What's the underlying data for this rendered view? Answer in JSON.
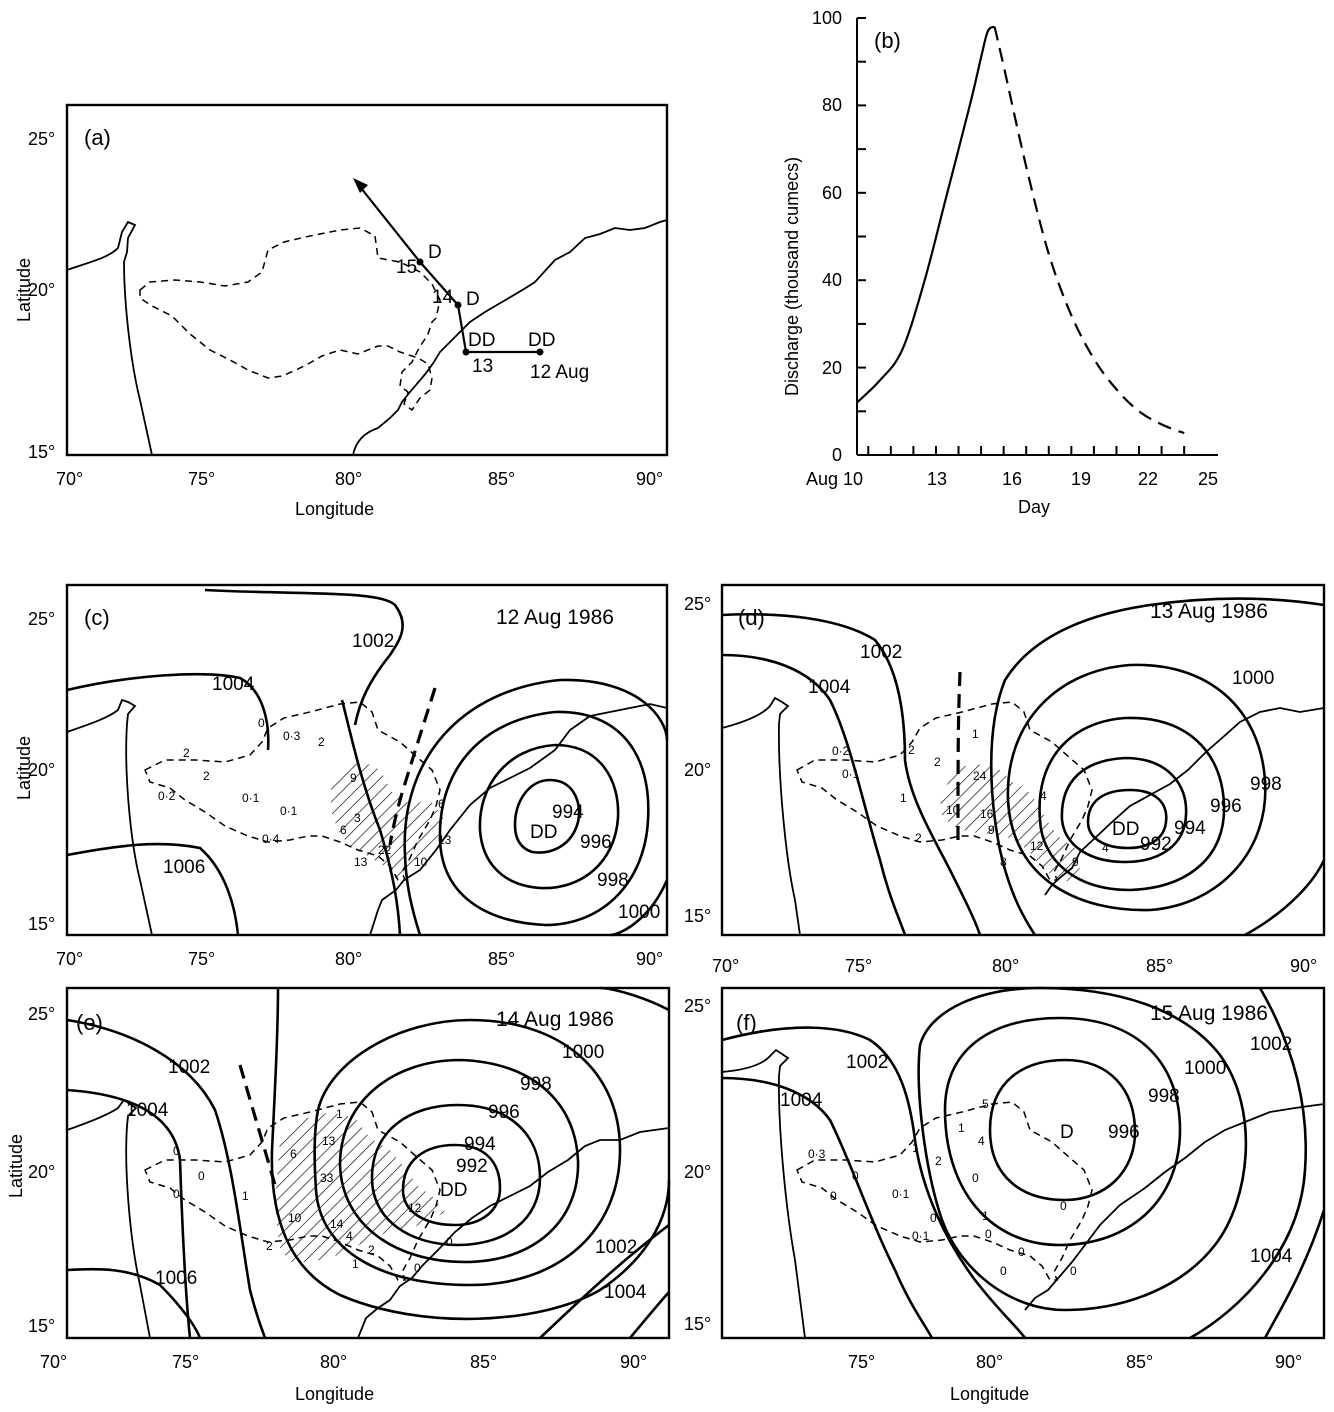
{
  "chart_data": [
    {
      "panel": "(a)",
      "type": "map",
      "xlabel": "Longitude",
      "ylabel": "Latitude",
      "xticks": [
        "70°",
        "75°",
        "80°",
        "85°",
        "90°"
      ],
      "yticks": [
        "15°",
        "20°",
        "25°"
      ],
      "xlim": [
        70,
        90.5
      ],
      "ylim": [
        14.8,
        25.5
      ],
      "track": [
        {
          "lon": 86.2,
          "lat": 18.0,
          "day": "12 Aug",
          "stage": "DD"
        },
        {
          "lon": 83.6,
          "lat": 18.0,
          "day": "13",
          "stage": "DD"
        },
        {
          "lon": 83.3,
          "lat": 19.3,
          "day": "14",
          "stage": "D"
        },
        {
          "lon": 82.2,
          "lat": 20.8,
          "day": "15",
          "stage": "D"
        },
        {
          "lon": 80.2,
          "lat": 23.3,
          "day": "",
          "stage": ""
        }
      ]
    },
    {
      "panel": "(b)",
      "type": "line",
      "xlabel": "Day",
      "ylabel": "Discharge (thousand cumecs)",
      "xticks": [
        "Aug 10",
        "13",
        "16",
        "19",
        "22",
        "25"
      ],
      "yticks": [
        "0",
        "20",
        "40",
        "60",
        "80",
        "100"
      ],
      "xlim": [
        9.5,
        25.5
      ],
      "ylim": [
        0,
        100
      ],
      "series": [
        {
          "style": "solid",
          "x": [
            9.5,
            10.5,
            11.5,
            12.5,
            13.5,
            14.5,
            15.0,
            15.3,
            15.6
          ],
          "y": [
            12,
            17,
            24,
            40,
            60,
            80,
            91,
            97,
            98
          ]
        },
        {
          "style": "dashed",
          "x": [
            15.6,
            16.0,
            17.0,
            18.0,
            19.0,
            20.0,
            21.0,
            22.0,
            23.0,
            24.0
          ],
          "y": [
            98,
            89,
            66,
            46,
            32,
            22,
            15,
            10,
            7,
            5
          ]
        }
      ]
    },
    {
      "panel": "(c)",
      "type": "map",
      "date": "12 Aug 1986",
      "ylabel": "Latitude",
      "xticks": [
        "70°",
        "75°",
        "80°",
        "85°",
        "90°"
      ],
      "yticks": [
        "15°",
        "20°",
        "25°"
      ],
      "center": {
        "label": "DD",
        "lon": 85.8,
        "lat": 17.8
      },
      "isobar_labels": [
        "1002",
        "1004",
        "1006",
        "994",
        "996",
        "998",
        "1000"
      ],
      "rain_values": [
        "2",
        "2",
        "0·2",
        "0·1",
        "0",
        "0·3",
        "0·1",
        "0·4",
        "2",
        "9",
        "3",
        "6",
        "13",
        "22",
        "10",
        "13",
        "6"
      ]
    },
    {
      "panel": "(d)",
      "type": "map",
      "date": "13 Aug 1986",
      "xticks": [
        "70°",
        "75°",
        "80°",
        "85°",
        "90°"
      ],
      "yticks": [
        "15°",
        "20°",
        "25°"
      ],
      "center": {
        "label": "DD",
        "lon": 84.4,
        "lat": 18.0
      },
      "isobar_labels": [
        "1002",
        "1004",
        "1000",
        "998",
        "996",
        "994",
        "992"
      ],
      "rain_values": [
        "0·2",
        "0·1",
        "1",
        "2",
        "2",
        "2",
        "1",
        "24",
        "10",
        "16",
        "9",
        "8",
        "12",
        "4",
        "9",
        "4"
      ]
    },
    {
      "panel": "(e)",
      "type": "map",
      "date": "14 Aug 1986",
      "xlabel": "Longitude",
      "ylabel": "Latitude",
      "xticks": [
        "70°",
        "75°",
        "80°",
        "85°",
        "90°"
      ],
      "yticks": [
        "15°",
        "20°",
        "25°"
      ],
      "center": {
        "label": "DD",
        "lon": 83.6,
        "lat": 19.3
      },
      "isobar_labels": [
        "1002",
        "1004",
        "1006",
        "1000",
        "998",
        "996",
        "994",
        "992",
        "1002",
        "1004"
      ],
      "rain_values": [
        "0",
        "0",
        "0",
        "1",
        "1",
        "6",
        "13",
        "33",
        "10",
        "14",
        "12",
        "4",
        "2",
        "2",
        "1",
        "0",
        "0"
      ]
    },
    {
      "panel": "(f)",
      "type": "map",
      "date": "15 Aug 1986",
      "xlabel": "Longitude",
      "xticks": [
        "70°",
        "75°",
        "80°",
        "85°",
        "90°"
      ],
      "yticks": [
        "15°",
        "20°",
        "25°"
      ],
      "center": {
        "label": "D",
        "lon": 82.2,
        "lat": 20.5
      },
      "isobar_labels": [
        "1002",
        "1004",
        "1000",
        "998",
        "996",
        "1002",
        "1004"
      ],
      "rain_values": [
        "0·3",
        "0",
        "0",
        "0·1",
        "0·1",
        "1",
        "2",
        "1",
        "0",
        "5",
        "4",
        "0",
        "0",
        "1",
        "0",
        "0",
        "0",
        "0"
      ]
    }
  ]
}
